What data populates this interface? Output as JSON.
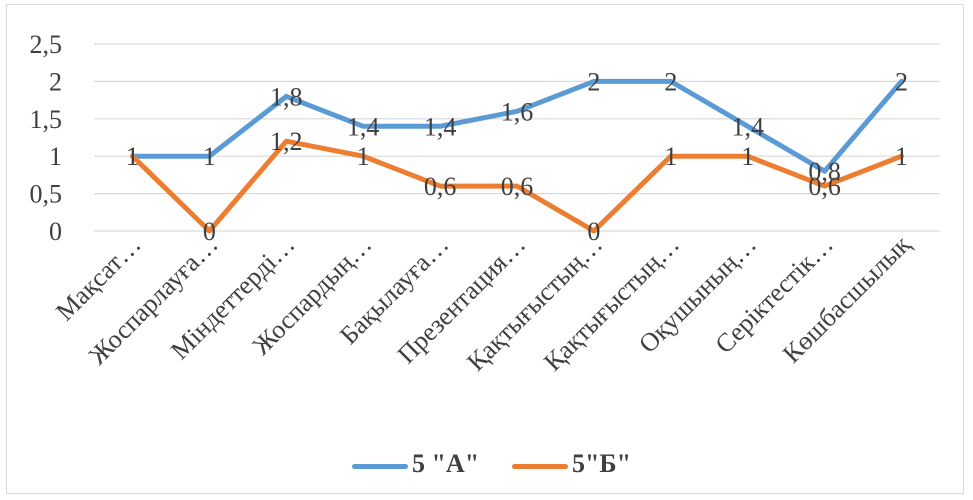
{
  "chart_data": {
    "type": "line",
    "categories": [
      "Мақсат…",
      "Жоспарлауға…",
      "Міндеттерді…",
      "Жоспардың…",
      "Бақылауға…",
      "Презентация…",
      "Қақтығыстың…",
      "Қақтығыстың…",
      "Оқушының…",
      "Серіктестік…",
      "Көшбасшылық"
    ],
    "series": [
      {
        "name": "5 \"А\"",
        "color": "#5b9bd5",
        "values": [
          1,
          1,
          1.8,
          1.4,
          1.4,
          1.6,
          2,
          2,
          1.4,
          0.8,
          2
        ],
        "labels": [
          "1",
          "1",
          "1,8",
          "1,4",
          "1,4",
          "1,6",
          "2",
          "2",
          "1,4",
          "0,8",
          "2"
        ]
      },
      {
        "name": "5\"Б\"",
        "color": "#ed7d31",
        "values": [
          1,
          0,
          1.2,
          1,
          0.6,
          0.6,
          0,
          1,
          1,
          0.6,
          1
        ],
        "labels": [
          "1",
          "0",
          "1,2",
          "1",
          "0,6",
          "0,6",
          "0",
          "1",
          "1",
          "0,6",
          "1"
        ]
      }
    ],
    "y_ticks": [
      "0",
      "0,5",
      "1",
      "1,5",
      "2",
      "2,5"
    ],
    "ylim": [
      0,
      2.5
    ],
    "grid": true,
    "legend_position": "bottom"
  }
}
